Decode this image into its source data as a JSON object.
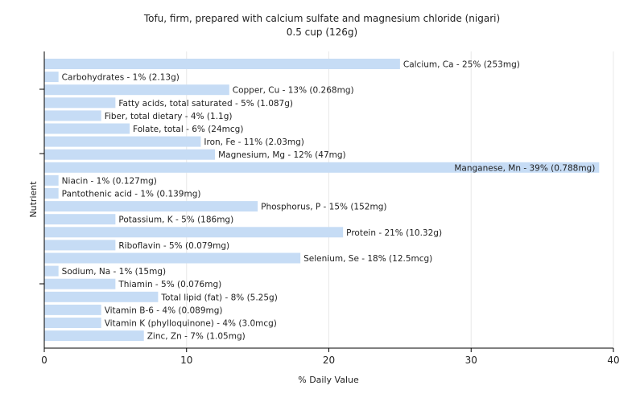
{
  "chart_data": {
    "type": "bar",
    "orientation": "horizontal",
    "title": "Tofu, firm, prepared with calcium sulfate and magnesium chloride (nigari)",
    "subtitle": "0.5 cup (126g)",
    "xlabel": "% Daily Value",
    "ylabel": "Nutrient",
    "xlim": [
      0,
      40
    ],
    "xticks": [
      0,
      10,
      20,
      30,
      40
    ],
    "grid": true,
    "bar_color": "#c6dcf5",
    "grid_color": "#e8e8e8",
    "bars": [
      {
        "label": "Calcium, Ca - 25% (253mg)",
        "value": 25
      },
      {
        "label": "Carbohydrates - 1% (2.13g)",
        "value": 1
      },
      {
        "label": "Copper, Cu - 13% (0.268mg)",
        "value": 13
      },
      {
        "label": "Fatty acids, total saturated - 5% (1.087g)",
        "value": 5
      },
      {
        "label": "Fiber, total dietary - 4% (1.1g)",
        "value": 4
      },
      {
        "label": "Folate, total - 6% (24mcg)",
        "value": 6
      },
      {
        "label": "Iron, Fe - 11% (2.03mg)",
        "value": 11
      },
      {
        "label": "Magnesium, Mg - 12% (47mg)",
        "value": 12
      },
      {
        "label": "Manganese, Mn - 39% (0.788mg)",
        "value": 39
      },
      {
        "label": "Niacin - 1% (0.127mg)",
        "value": 1
      },
      {
        "label": "Pantothenic acid - 1% (0.139mg)",
        "value": 1
      },
      {
        "label": "Phosphorus, P - 15% (152mg)",
        "value": 15
      },
      {
        "label": "Potassium, K - 5% (186mg)",
        "value": 5
      },
      {
        "label": "Protein - 21% (10.32g)",
        "value": 21
      },
      {
        "label": "Riboflavin - 5% (0.079mg)",
        "value": 5
      },
      {
        "label": "Selenium, Se - 18% (12.5mcg)",
        "value": 18
      },
      {
        "label": "Sodium, Na - 1% (15mg)",
        "value": 1
      },
      {
        "label": "Thiamin - 5% (0.076mg)",
        "value": 5
      },
      {
        "label": "Total lipid (fat) - 8% (5.25g)",
        "value": 8
      },
      {
        "label": "Vitamin B-6 - 4% (0.089mg)",
        "value": 4
      },
      {
        "label": "Vitamin K (phylloquinone) - 4% (3.0mcg)",
        "value": 4
      },
      {
        "label": "Zinc, Zn - 7% (1.05mg)",
        "value": 7
      }
    ]
  }
}
